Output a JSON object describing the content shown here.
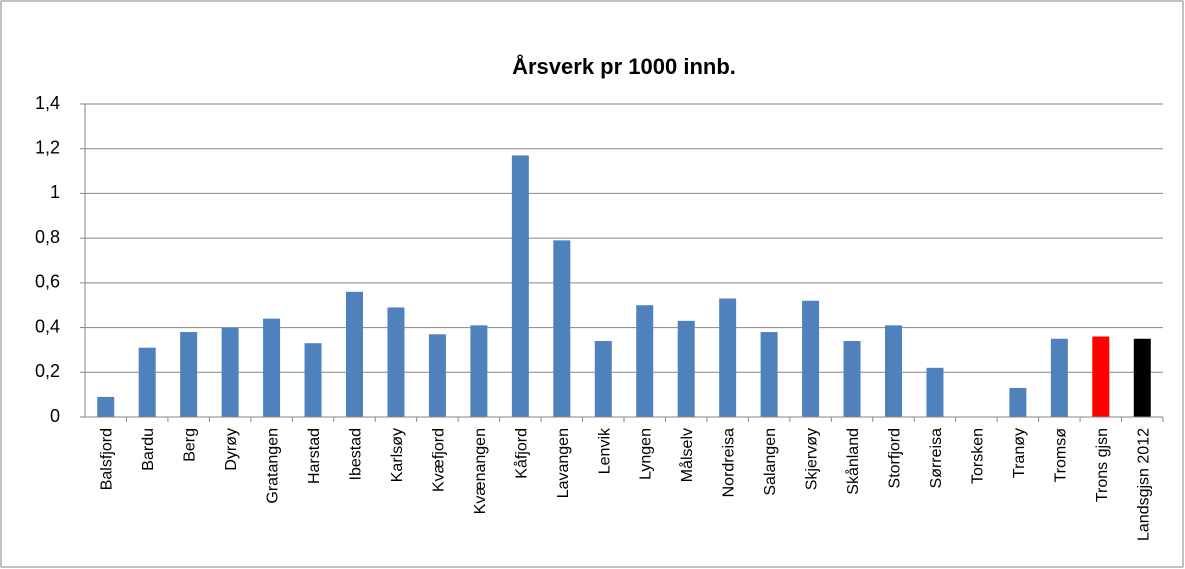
{
  "chart_data": {
    "type": "bar",
    "title": "Årsverk pr 1000 innb.",
    "categories": [
      "Balsfjord",
      "Bardu",
      "Berg",
      "Dyrøy",
      "Gratangen",
      "Harstad",
      "Ibestad",
      "Karlsøy",
      "Kvæfjord",
      "Kvænangen",
      "Kåfjord",
      "Lavangen",
      "Lenvik",
      "Lyngen",
      "Målselv",
      "Nordreisa",
      "Salangen",
      "Skjervøy",
      "Skånland",
      "Storfjord",
      "Sørreisa",
      "Torsken",
      "Tranøy",
      "Tromsø",
      "Trons gjsn",
      "Landsgjsn 2012"
    ],
    "values": [
      0.09,
      0.31,
      0.38,
      0.4,
      0.44,
      0.33,
      0.56,
      0.49,
      0.37,
      0.41,
      1.17,
      0.79,
      0.34,
      0.5,
      0.43,
      0.53,
      0.38,
      0.52,
      0.34,
      0.41,
      0.22,
      0,
      0.13,
      0.35,
      0.36,
      0.35
    ],
    "colors": [
      "#4f81bd",
      "#4f81bd",
      "#4f81bd",
      "#4f81bd",
      "#4f81bd",
      "#4f81bd",
      "#4f81bd",
      "#4f81bd",
      "#4f81bd",
      "#4f81bd",
      "#4f81bd",
      "#4f81bd",
      "#4f81bd",
      "#4f81bd",
      "#4f81bd",
      "#4f81bd",
      "#4f81bd",
      "#4f81bd",
      "#4f81bd",
      "#4f81bd",
      "#4f81bd",
      "#4f81bd",
      "#4f81bd",
      "#4f81bd",
      "#ff0000",
      "#000000"
    ],
    "ylim": [
      0,
      1.4
    ],
    "yticks": [
      0,
      {
        "value": 0.2,
        "label": "0,2"
      },
      {
        "value": 0.4,
        "label": "0,4"
      },
      {
        "value": 0.6,
        "label": "0,6"
      },
      {
        "value": 0.8,
        "label": "0,8"
      },
      1,
      {
        "value": 1.2,
        "label": "1,2"
      },
      {
        "value": 1.4,
        "label": "1,4"
      }
    ],
    "grid": true
  }
}
